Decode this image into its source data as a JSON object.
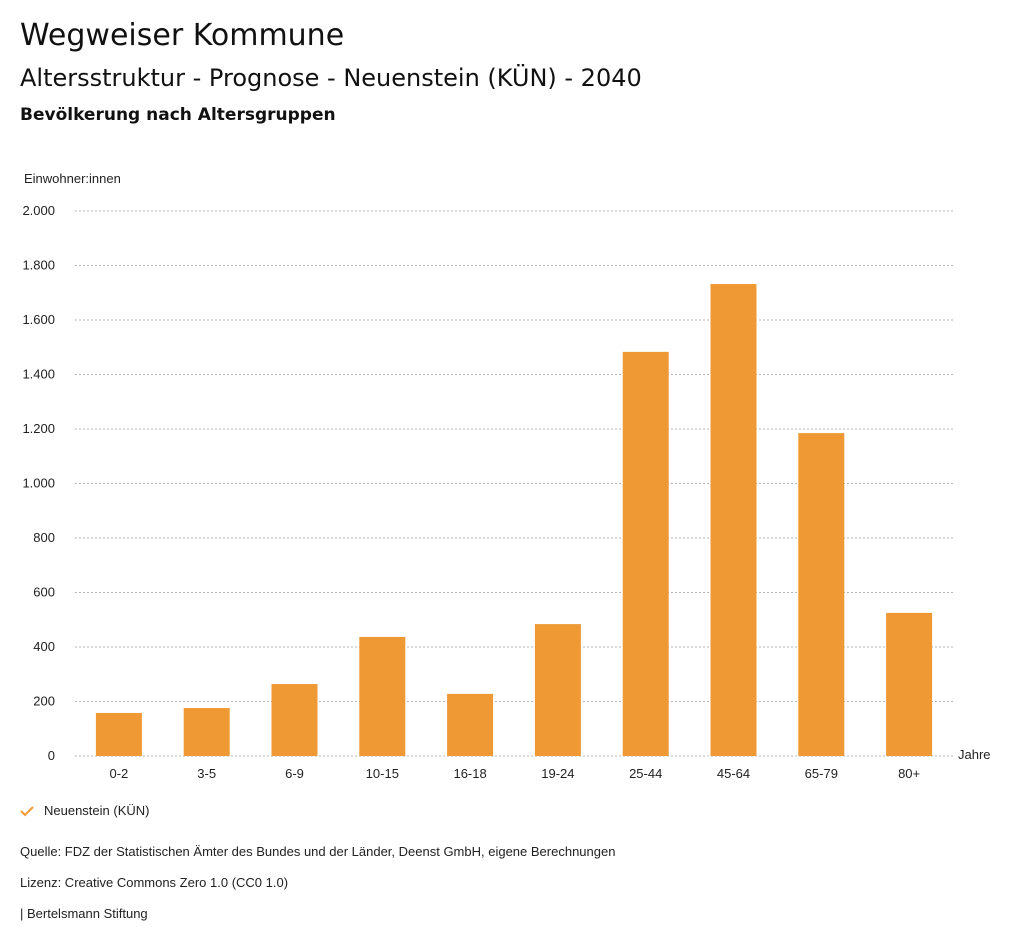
{
  "header": {
    "title": "Wegweiser Kommune",
    "subtitle": "Altersstruktur - Prognose - Neuenstein (KÜN) - 2040",
    "chart_title": "Bevölkerung nach Altersgruppen"
  },
  "chart_data": {
    "type": "bar",
    "title": "Bevölkerung nach Altersgruppen",
    "ylabel": "Einwohner:innen",
    "xlabel": "Jahre",
    "ylim": [
      0,
      2000
    ],
    "yticks": [
      0,
      200,
      400,
      600,
      800,
      1000,
      1200,
      1400,
      1600,
      1800,
      2000
    ],
    "ytick_labels": [
      "0",
      "200",
      "400",
      "600",
      "800",
      "1.000",
      "1.200",
      "1.400",
      "1.600",
      "1.800",
      "2.000"
    ],
    "grid": true,
    "categories": [
      "0-2",
      "3-5",
      "6-9",
      "10-15",
      "16-18",
      "19-24",
      "25-44",
      "45-64",
      "65-79",
      "80+"
    ],
    "series": [
      {
        "name": "Neuenstein (KÜN)",
        "color": "#EE9934",
        "values": [
          158,
          176,
          264,
          437,
          228,
          484,
          1483,
          1732,
          1185,
          525
        ]
      }
    ],
    "legend": "bottom-left"
  },
  "footer": {
    "source": "Quelle: FDZ der Statistischen Ämter des Bundes und der Länder, Deenst GmbH, eigene Berechnungen",
    "license": "Lizenz: Creative Commons Zero 1.0 (CC0 1.0)",
    "publisher": "| Bertelsmann Stiftung"
  }
}
